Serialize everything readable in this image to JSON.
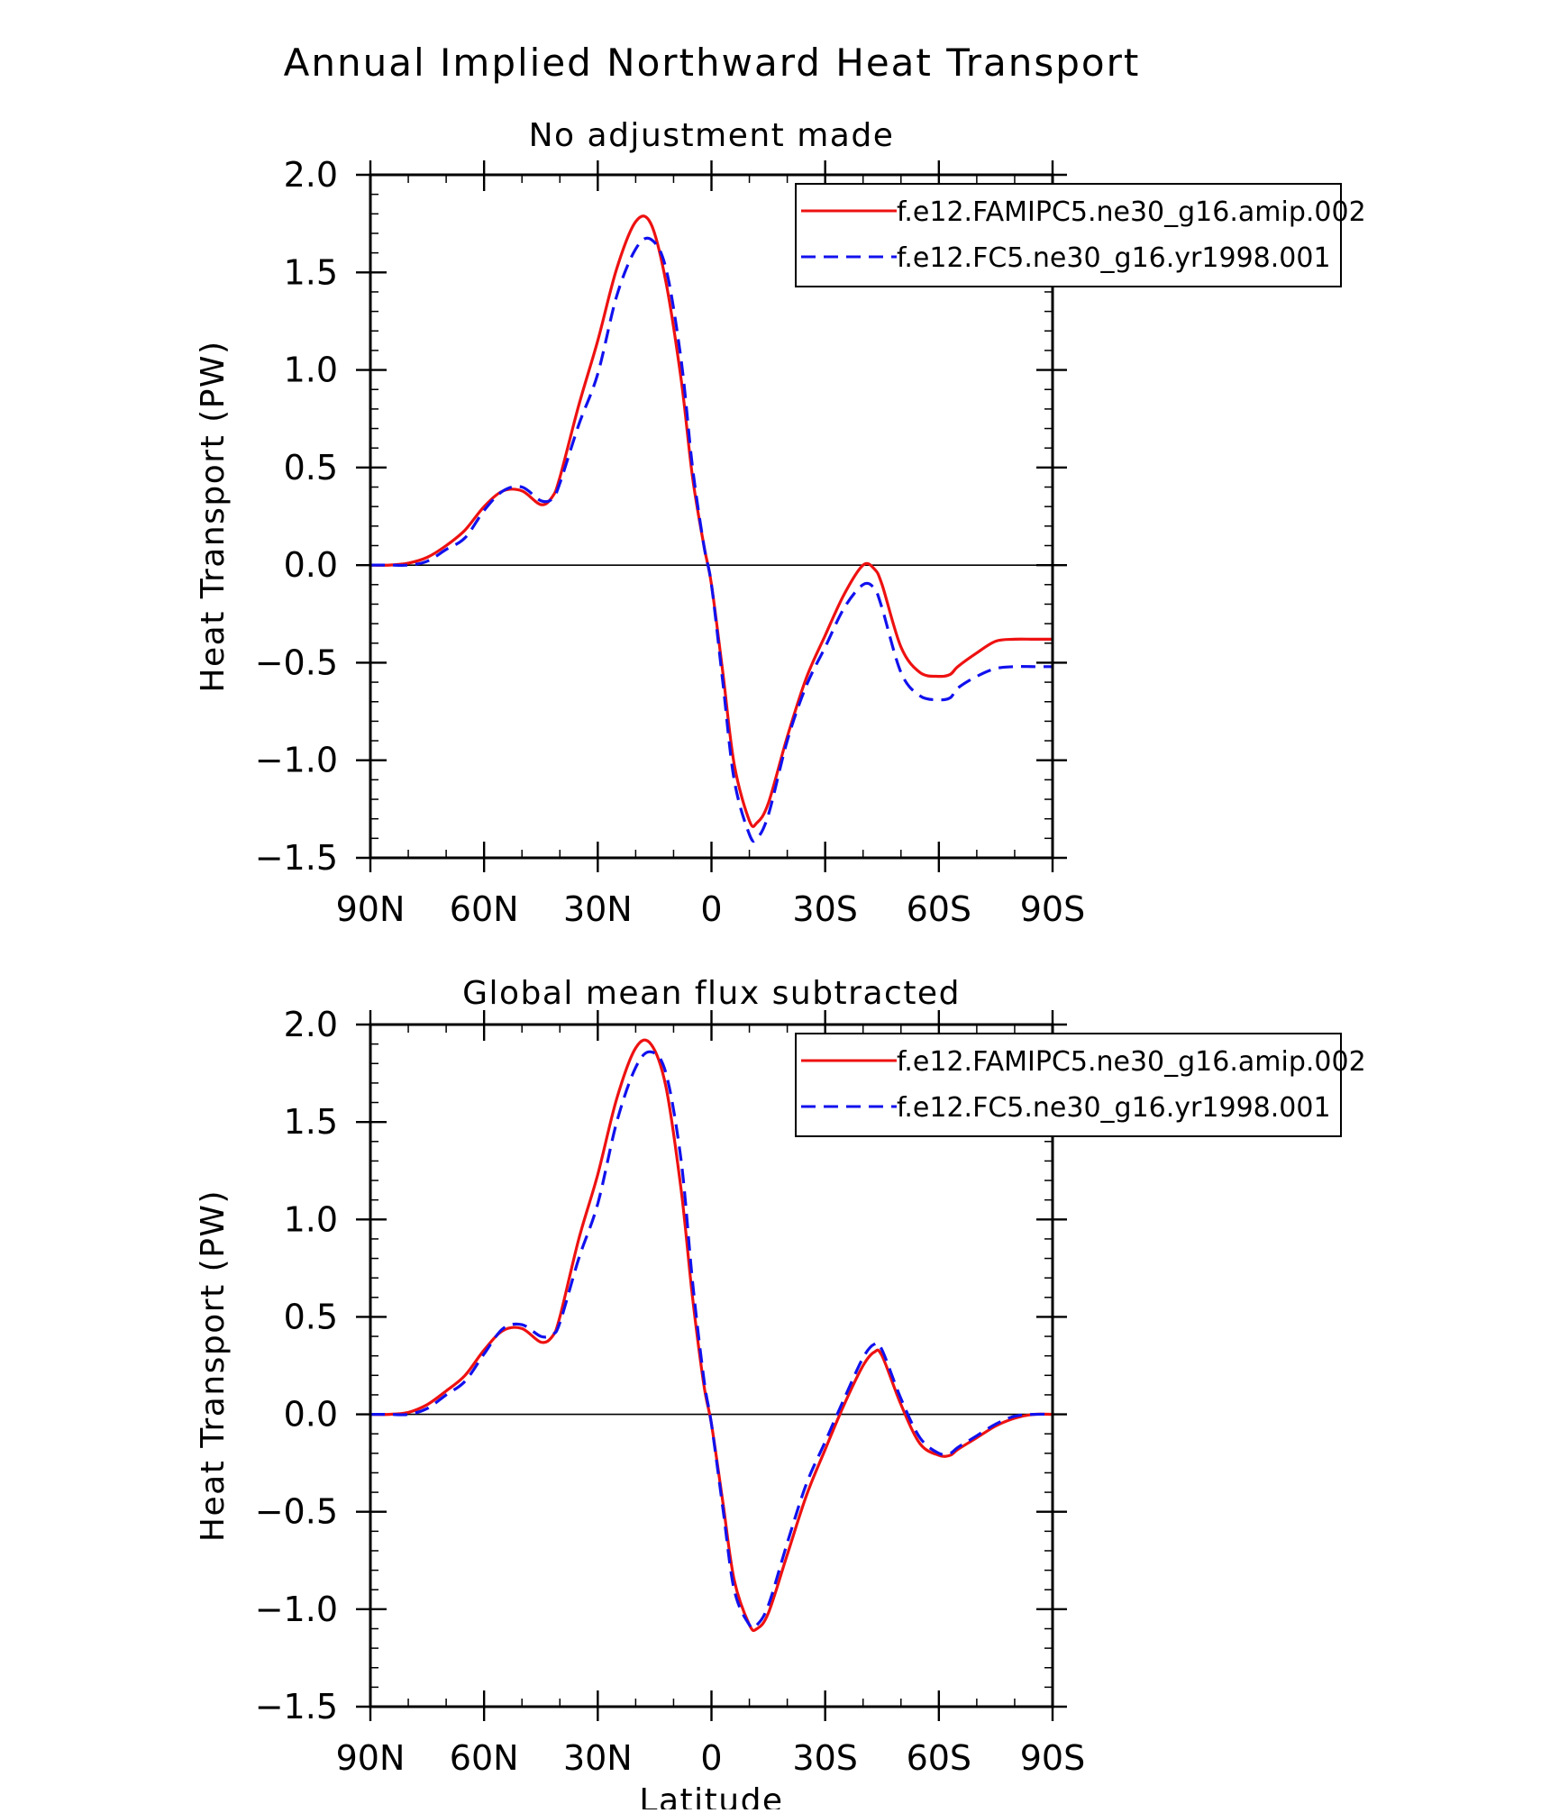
{
  "title": "Annual Implied Northward Heat Transport",
  "chart_data": [
    {
      "type": "line",
      "subtitle": "No adjustment made",
      "xlabel": "",
      "ylabel": "Heat Transport (PW)",
      "xlim": [
        90,
        -90
      ],
      "ylim": [
        -1.5,
        2.0
      ],
      "xticks": [
        90,
        60,
        30,
        0,
        -30,
        -60,
        -90
      ],
      "xtick_labels": [
        "90N",
        "60N",
        "30N",
        "0",
        "30S",
        "60S",
        "90S"
      ],
      "yticks": [
        -1.5,
        -1.0,
        -0.5,
        0.0,
        0.5,
        1.0,
        1.5,
        2.0
      ],
      "ytick_labels": [
        "−1.5",
        "−1.0",
        "−0.5",
        "0.0",
        "0.5",
        "1.0",
        "1.5",
        "2.0"
      ],
      "legend_position": "top-right",
      "series": [
        {
          "name": "f.e12.FAMIPC5.ne30_g16.amip.002",
          "color": "#ee1111",
          "dash": "solid",
          "x": [
            90,
            85,
            80,
            75,
            70,
            65,
            60,
            55,
            50,
            45,
            42,
            40,
            35,
            30,
            25,
            20,
            16,
            12,
            8,
            5,
            2,
            0,
            -3,
            -6,
            -10,
            -12,
            -15,
            -20,
            -25,
            -30,
            -35,
            -40,
            -43,
            -45,
            -50,
            -55,
            -60,
            -63,
            -65,
            -70,
            -75,
            -80,
            -85,
            -90
          ],
          "y": [
            0.0,
            0.0,
            0.01,
            0.04,
            0.1,
            0.18,
            0.3,
            0.38,
            0.38,
            0.31,
            0.35,
            0.45,
            0.82,
            1.15,
            1.52,
            1.76,
            1.75,
            1.45,
            0.95,
            0.45,
            0.1,
            -0.1,
            -0.55,
            -1.02,
            -1.31,
            -1.32,
            -1.22,
            -0.88,
            -0.58,
            -0.36,
            -0.15,
            0.0,
            -0.02,
            -0.1,
            -0.42,
            -0.55,
            -0.57,
            -0.56,
            -0.52,
            -0.45,
            -0.39,
            -0.38,
            -0.38,
            -0.38
          ]
        },
        {
          "name": "f.e12.FC5.ne30_g16.yr1998.001",
          "color": "#1111ee",
          "dash": "dashed",
          "x": [
            90,
            85,
            80,
            75,
            70,
            65,
            60,
            55,
            50,
            45,
            42,
            40,
            35,
            30,
            25,
            20,
            16,
            12,
            8,
            5,
            2,
            0,
            -3,
            -6,
            -10,
            -12,
            -15,
            -20,
            -25,
            -30,
            -35,
            -40,
            -43,
            -45,
            -50,
            -55,
            -60,
            -63,
            -65,
            -70,
            -75,
            -80,
            -85,
            -90
          ],
          "y": [
            0.0,
            0.0,
            0.0,
            0.02,
            0.08,
            0.14,
            0.28,
            0.38,
            0.4,
            0.33,
            0.34,
            0.42,
            0.72,
            0.98,
            1.38,
            1.62,
            1.67,
            1.52,
            1.05,
            0.5,
            0.1,
            -0.1,
            -0.6,
            -1.1,
            -1.38,
            -1.4,
            -1.28,
            -0.9,
            -0.62,
            -0.42,
            -0.22,
            -0.1,
            -0.12,
            -0.22,
            -0.55,
            -0.67,
            -0.69,
            -0.68,
            -0.63,
            -0.57,
            -0.53,
            -0.52,
            -0.52,
            -0.52
          ]
        }
      ]
    },
    {
      "type": "line",
      "subtitle": "Global mean flux subtracted",
      "xlabel": "Latitude",
      "ylabel": "Heat Transport (PW)",
      "xlim": [
        90,
        -90
      ],
      "ylim": [
        -1.5,
        2.0
      ],
      "xticks": [
        90,
        60,
        30,
        0,
        -30,
        -60,
        -90
      ],
      "xtick_labels": [
        "90N",
        "60N",
        "30N",
        "0",
        "30S",
        "60S",
        "90S"
      ],
      "yticks": [
        -1.5,
        -1.0,
        -0.5,
        0.0,
        0.5,
        1.0,
        1.5,
        2.0
      ],
      "ytick_labels": [
        "−1.5",
        "−1.0",
        "−0.5",
        "0.0",
        "0.5",
        "1.0",
        "1.5",
        "2.0"
      ],
      "legend_position": "top-right",
      "series": [
        {
          "name": "f.e12.FAMIPC5.ne30_g16.amip.002",
          "color": "#ee1111",
          "dash": "solid",
          "x": [
            90,
            85,
            80,
            75,
            70,
            65,
            60,
            55,
            50,
            45,
            42,
            40,
            35,
            30,
            25,
            20,
            16,
            12,
            8,
            5,
            2,
            0,
            -3,
            -6,
            -10,
            -12,
            -15,
            -20,
            -25,
            -30,
            -35,
            -40,
            -43,
            -45,
            -50,
            -55,
            -60,
            -63,
            -65,
            -70,
            -75,
            -80,
            -85,
            -90
          ],
          "y": [
            0.0,
            0.0,
            0.01,
            0.05,
            0.12,
            0.2,
            0.33,
            0.43,
            0.44,
            0.37,
            0.4,
            0.5,
            0.9,
            1.23,
            1.62,
            1.88,
            1.9,
            1.68,
            1.15,
            0.6,
            0.15,
            -0.05,
            -0.45,
            -0.85,
            -1.08,
            -1.1,
            -1.02,
            -0.72,
            -0.42,
            -0.18,
            0.05,
            0.25,
            0.32,
            0.3,
            0.05,
            -0.15,
            -0.21,
            -0.21,
            -0.18,
            -0.12,
            -0.06,
            -0.02,
            0.0,
            0.0
          ]
        },
        {
          "name": "f.e12.FC5.ne30_g16.yr1998.001",
          "color": "#1111ee",
          "dash": "dashed",
          "x": [
            90,
            85,
            80,
            75,
            70,
            65,
            60,
            55,
            50,
            45,
            42,
            40,
            35,
            30,
            25,
            20,
            16,
            12,
            8,
            5,
            2,
            0,
            -3,
            -6,
            -10,
            -12,
            -15,
            -20,
            -25,
            -30,
            -35,
            -40,
            -43,
            -45,
            -50,
            -55,
            -60,
            -63,
            -65,
            -70,
            -75,
            -80,
            -85,
            -90
          ],
          "y": [
            0.0,
            0.0,
            0.0,
            0.03,
            0.1,
            0.17,
            0.31,
            0.44,
            0.46,
            0.4,
            0.41,
            0.47,
            0.8,
            1.08,
            1.5,
            1.78,
            1.86,
            1.75,
            1.3,
            0.68,
            0.18,
            -0.05,
            -0.48,
            -0.9,
            -1.08,
            -1.08,
            -0.98,
            -0.66,
            -0.36,
            -0.14,
            0.08,
            0.29,
            0.36,
            0.33,
            0.08,
            -0.12,
            -0.2,
            -0.2,
            -0.17,
            -0.11,
            -0.05,
            -0.01,
            0.0,
            0.0
          ]
        }
      ]
    }
  ]
}
